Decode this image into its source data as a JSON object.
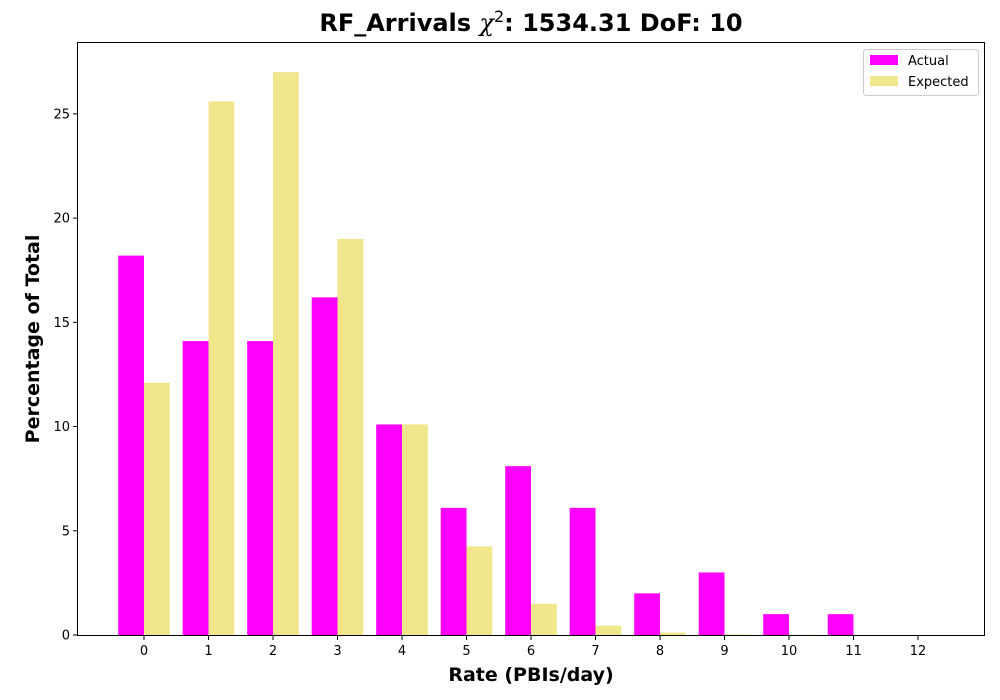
{
  "chart_data": {
    "type": "bar",
    "title": {
      "prefix": "RF_Arrivals ",
      "symbol": "χ",
      "exponent": "2",
      "suffix": ": 1534.31 DoF: 10"
    },
    "xlabel": "Rate (PBIs/day)",
    "ylabel": "Percentage of Total",
    "categories": [
      "0",
      "1",
      "2",
      "3",
      "4",
      "5",
      "6",
      "7",
      "8",
      "9",
      "10",
      "11",
      "12"
    ],
    "series": [
      {
        "name": "Actual",
        "color": "#ff00ff",
        "values": [
          18.2,
          14.1,
          14.1,
          16.2,
          10.1,
          6.1,
          8.1,
          6.1,
          2.0,
          3.0,
          1.0,
          1.0,
          0.0
        ]
      },
      {
        "name": "Expected",
        "color": "#f0e68c",
        "values": [
          12.1,
          25.6,
          27.0,
          19.0,
          10.1,
          4.25,
          1.5,
          0.45,
          0.12,
          0.03,
          0.01,
          0.0,
          0.0
        ]
      }
    ],
    "ylim": [
      0,
      28.4
    ],
    "yticks": [
      "0",
      "5",
      "10",
      "15",
      "20",
      "25"
    ],
    "legend_position": "top-right",
    "grid": false
  }
}
